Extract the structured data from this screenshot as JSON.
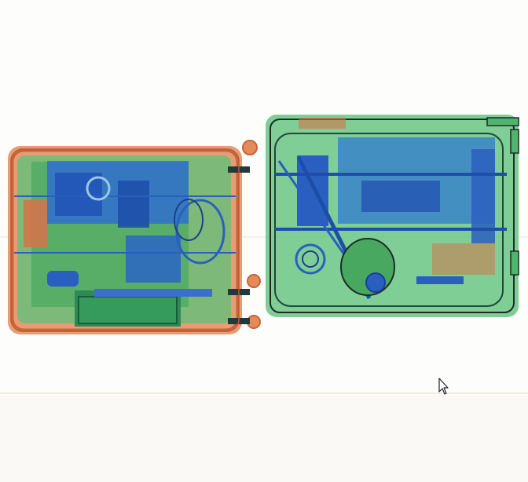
{
  "scan": {
    "colors": {
      "background": "#fdfdfb",
      "organic": "#e07a45",
      "inorganic": "#3fb05a",
      "metal": "#2a5fc0",
      "dense_metal": "#1a3f9a",
      "outline": "#1d2b2a"
    },
    "objects": [
      {
        "name": "left-suitcase",
        "kind": "luggage",
        "material_mix": [
          "organic",
          "inorganic",
          "metal"
        ]
      },
      {
        "name": "right-suitcase",
        "kind": "luggage",
        "material_mix": [
          "inorganic",
          "metal",
          "organic"
        ]
      }
    ]
  },
  "cursor": {
    "icon": "arrow-cursor-icon"
  }
}
